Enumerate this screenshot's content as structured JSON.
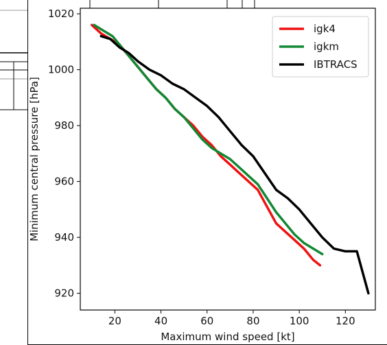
{
  "chart_data": {
    "type": "line",
    "title": "",
    "xlabel": "Maximum wind speed [kt]",
    "ylabel": "Minimum central pressure [hPa]",
    "xlim": [
      5,
      133
    ],
    "ylim": [
      914,
      1022
    ],
    "xticks": [
      20,
      40,
      60,
      80,
      100,
      120
    ],
    "yticks": [
      920,
      940,
      960,
      980,
      1000,
      1020
    ],
    "grid": false,
    "legend": "top-right",
    "series": [
      {
        "name": "igk4",
        "color": "#ee1111",
        "x": [
          10,
          14,
          18,
          22,
          26,
          30,
          34,
          38,
          42,
          46,
          50,
          54,
          58,
          62,
          66,
          70,
          74,
          78,
          82,
          86,
          90,
          94,
          98,
          102,
          106,
          109
        ],
        "y": [
          1016,
          1013,
          1011,
          1009,
          1005,
          1001,
          997,
          993,
          990,
          986,
          983,
          980,
          976,
          973,
          969,
          966,
          963,
          960,
          957,
          951,
          945,
          942,
          939,
          936,
          932,
          930
        ]
      },
      {
        "name": "igkm",
        "color": "#118833",
        "x": [
          11,
          15,
          19,
          22,
          26,
          30,
          34,
          38,
          42,
          46,
          50,
          54,
          58,
          62,
          66,
          70,
          74,
          78,
          82,
          86,
          90,
          94,
          98,
          102,
          106,
          110
        ],
        "y": [
          1016,
          1014,
          1012,
          1009,
          1005,
          1001,
          997,
          993,
          990,
          986,
          983,
          979,
          975,
          972,
          970,
          968,
          965,
          962,
          959,
          954,
          949,
          945,
          941,
          938,
          936,
          934
        ]
      },
      {
        "name": "IBTRACS",
        "color": "#000000",
        "x": [
          14,
          18,
          22,
          26,
          30,
          35,
          40,
          45,
          50,
          55,
          60,
          65,
          70,
          75,
          80,
          85,
          90,
          95,
          100,
          105,
          110,
          115,
          120,
          125,
          130
        ],
        "y": [
          1012,
          1011,
          1008,
          1006,
          1003,
          1000,
          998,
          995,
          993,
          990,
          987,
          983,
          978,
          973,
          969,
          963,
          957,
          954,
          950,
          945,
          940,
          936,
          935,
          935,
          920
        ]
      }
    ]
  }
}
